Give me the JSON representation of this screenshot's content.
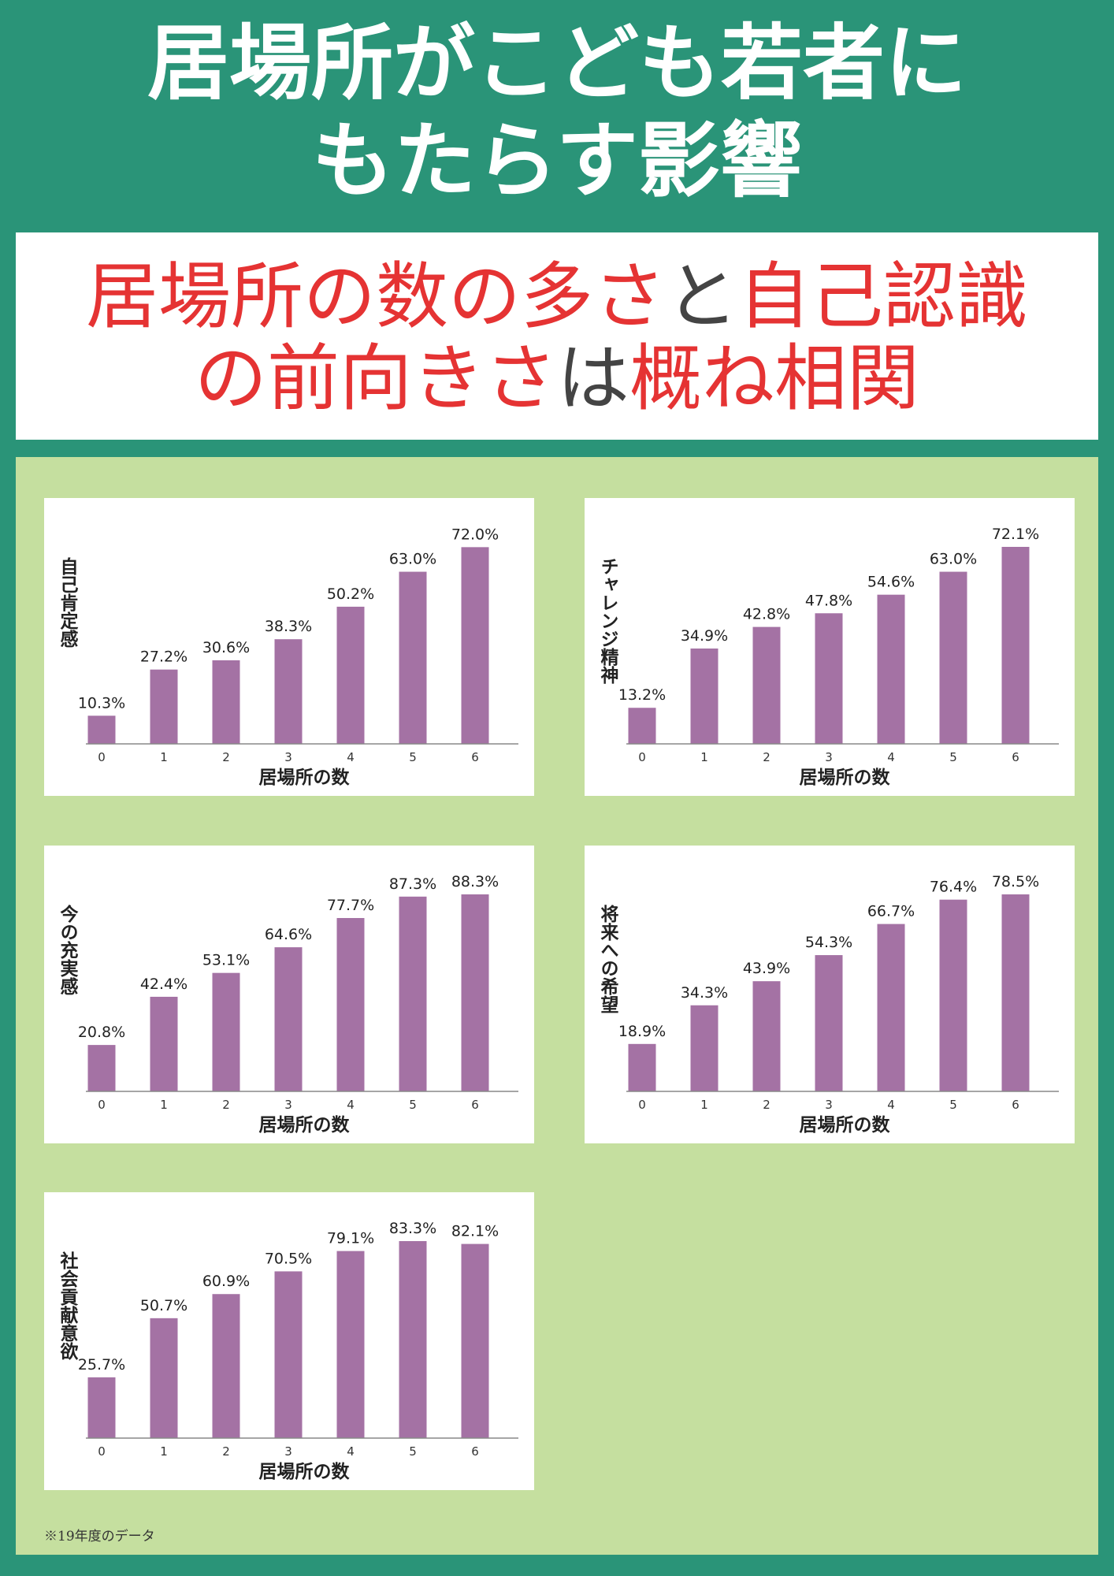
{
  "header": {
    "title_line1": "居場所がこども若者に",
    "title_line2": "もたらす影響"
  },
  "subtitle": {
    "line1": [
      {
        "text": "居場所の数の多さ",
        "color": "#e53333"
      },
      {
        "text": "と",
        "color": "#444444"
      },
      {
        "text": "自己認識",
        "color": "#e53333"
      }
    ],
    "line2": [
      {
        "text": "の前向きさ",
        "color": "#e53333"
      },
      {
        "text": "は",
        "color": "#444444"
      },
      {
        "text": "概ね相関",
        "color": "#e53333"
      }
    ]
  },
  "footnote": "※19年度のデータ",
  "colors": {
    "bar": "#a472a4",
    "frame": "#2a9478",
    "panel": "#c5df9f"
  },
  "chart_data": [
    {
      "type": "bar",
      "ylabel": "自己肯定感",
      "xlabel": "居場所の数",
      "categories": [
        "0",
        "1",
        "2",
        "3",
        "4",
        "5",
        "6"
      ],
      "values": [
        10.3,
        27.2,
        30.6,
        38.3,
        50.2,
        63.0,
        72.0
      ],
      "value_labels": [
        "10.3%",
        "27.2%",
        "30.6%",
        "38.3%",
        "50.2%",
        "63.0%",
        "72.0%"
      ],
      "ylim": [
        0,
        72.1
      ]
    },
    {
      "type": "bar",
      "ylabel": "チャレンジ精神",
      "xlabel": "居場所の数",
      "categories": [
        "0",
        "1",
        "2",
        "3",
        "4",
        "5",
        "6"
      ],
      "values": [
        13.2,
        34.9,
        42.8,
        47.8,
        54.6,
        63.0,
        72.1
      ],
      "value_labels": [
        "13.2%",
        "34.9%",
        "42.8%",
        "47.8%",
        "54.6%",
        "63.0%",
        "72.1%"
      ],
      "ylim": [
        0,
        72.1
      ]
    },
    {
      "type": "bar",
      "ylabel": "今の充実感",
      "xlabel": "居場所の数",
      "categories": [
        "0",
        "1",
        "2",
        "3",
        "4",
        "5",
        "6"
      ],
      "values": [
        20.8,
        42.4,
        53.1,
        64.6,
        77.7,
        87.3,
        88.3
      ],
      "value_labels": [
        "20.8%",
        "42.4%",
        "53.1%",
        "64.6%",
        "77.7%",
        "87.3%",
        "88.3%"
      ],
      "ylim": [
        0,
        88.3
      ]
    },
    {
      "type": "bar",
      "ylabel": "将来への希望",
      "xlabel": "居場所の数",
      "categories": [
        "0",
        "1",
        "2",
        "3",
        "4",
        "5",
        "6"
      ],
      "values": [
        18.9,
        34.3,
        43.9,
        54.3,
        66.7,
        76.4,
        78.5
      ],
      "value_labels": [
        "18.9%",
        "34.3%",
        "43.9%",
        "54.3%",
        "66.7%",
        "76.4%",
        "78.5%"
      ],
      "ylim": [
        0,
        78.5
      ]
    },
    {
      "type": "bar",
      "ylabel": "社会貢献意欲",
      "xlabel": "居場所の数",
      "categories": [
        "0",
        "1",
        "2",
        "3",
        "4",
        "5",
        "6"
      ],
      "values": [
        25.7,
        50.7,
        60.9,
        70.5,
        79.1,
        83.3,
        82.1
      ],
      "value_labels": [
        "25.7%",
        "50.7%",
        "60.9%",
        "70.5%",
        "79.1%",
        "83.3%",
        "82.1%"
      ],
      "ylim": [
        0,
        83.3
      ]
    }
  ]
}
